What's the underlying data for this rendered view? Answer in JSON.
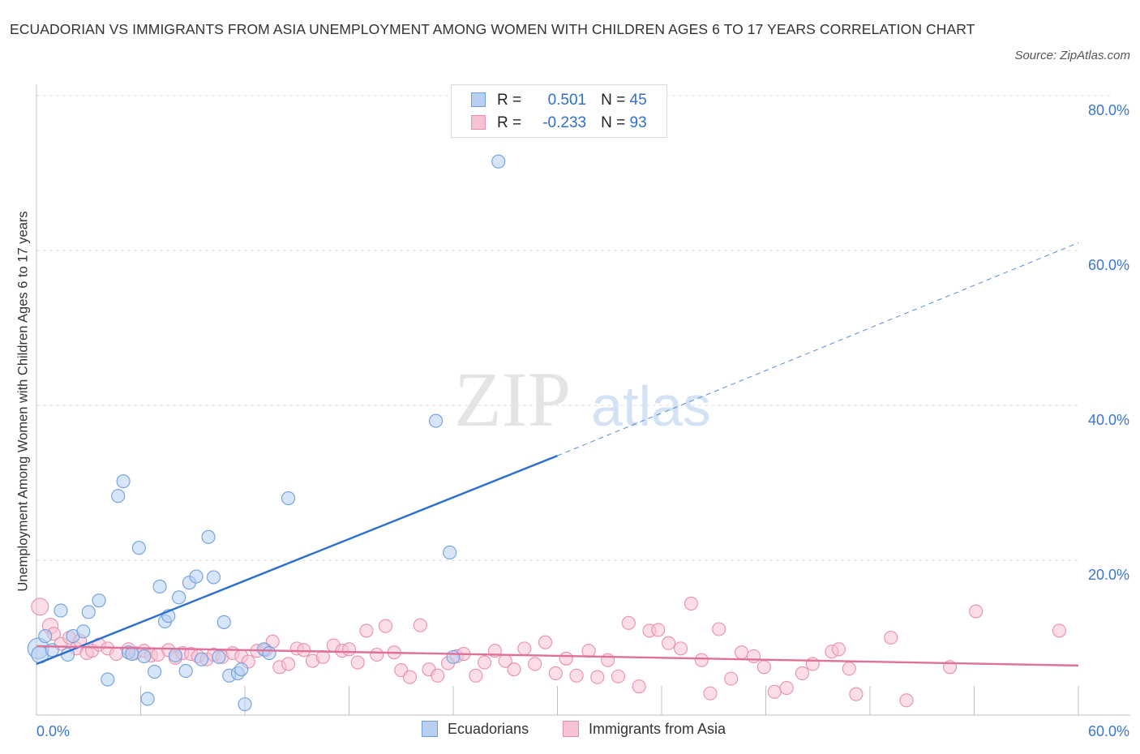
{
  "title": "ECUADORIAN VS IMMIGRANTS FROM ASIA UNEMPLOYMENT AMONG WOMEN WITH CHILDREN AGES 6 TO 17 YEARS CORRELATION CHART",
  "source": "Source: ZipAtlas.com",
  "watermark": {
    "zip": "ZIP",
    "atlas": "atlas"
  },
  "legend": {
    "r_label": "R =",
    "n_label": "N =",
    "series": [
      {
        "name": "Ecuadorians",
        "r": "0.501",
        "n": "45"
      },
      {
        "name": "Immigrants from Asia",
        "r": "-0.233",
        "n": "93"
      }
    ]
  },
  "colors": {
    "blue_fill": "#b7d0f2",
    "blue_stroke": "#6f9fdc",
    "blue_line": "#2a6fcf",
    "pink_fill": "#f7c3d3",
    "pink_stroke": "#e98fae",
    "pink_line": "#e0709a",
    "axis_text": "#3b76d0"
  },
  "chart_data": {
    "type": "scatter",
    "title": "ECUADORIAN VS IMMIGRANTS FROM ASIA UNEMPLOYMENT AMONG WOMEN WITH CHILDREN AGES 6 TO 17 YEARS CORRELATION CHART",
    "xlabel": "",
    "ylabel": "Unemployment Among Women with Children Ages 6 to 17 years",
    "xlim": [
      0,
      60
    ],
    "ylim": [
      0,
      80
    ],
    "x_tick_labels": [
      "0.0%",
      "60.0%"
    ],
    "y_ticks": [
      {
        "value": 20,
        "label": "20.0%"
      },
      {
        "value": 40,
        "label": "40.0%"
      },
      {
        "value": 60,
        "label": "60.0%"
      },
      {
        "value": 80,
        "label": "80.0%"
      }
    ],
    "grid": true,
    "legend_position": "top-center",
    "series": [
      {
        "name": "Ecuadorians",
        "color": "#6f9fdc",
        "trend": {
          "x0": 0,
          "y0": 6.6,
          "x1": 30,
          "y1": 33.5,
          "dashed_to_x": 60,
          "dashed_to_y": 61
        },
        "points": [
          [
            0.1,
            8.6,
            1.6
          ],
          [
            0.2,
            7.8,
            1.3
          ],
          [
            0.5,
            10.2,
            1
          ],
          [
            0.9,
            8.4,
            1
          ],
          [
            1.4,
            13.5,
            1
          ],
          [
            1.8,
            7.8,
            1
          ],
          [
            2.1,
            10.2,
            1
          ],
          [
            2.7,
            10.8,
            1
          ],
          [
            3.0,
            13.3,
            1
          ],
          [
            3.6,
            14.8,
            1
          ],
          [
            4.1,
            4.6,
            1
          ],
          [
            4.7,
            28.3,
            1
          ],
          [
            5.0,
            30.2,
            1
          ],
          [
            5.3,
            8.1,
            1
          ],
          [
            5.5,
            7.9,
            1
          ],
          [
            5.9,
            21.6,
            1
          ],
          [
            6.2,
            7.6,
            1
          ],
          [
            6.4,
            2.1,
            1
          ],
          [
            6.8,
            5.6,
            1
          ],
          [
            7.1,
            16.6,
            1
          ],
          [
            7.4,
            12.1,
            1
          ],
          [
            7.6,
            12.8,
            1
          ],
          [
            8.0,
            7.7,
            1
          ],
          [
            8.2,
            15.2,
            1
          ],
          [
            8.6,
            5.7,
            1
          ],
          [
            8.8,
            17.1,
            1
          ],
          [
            9.2,
            17.9,
            1
          ],
          [
            9.5,
            7.2,
            1
          ],
          [
            9.9,
            23.0,
            1
          ],
          [
            10.2,
            17.8,
            1
          ],
          [
            10.5,
            7.5,
            1
          ],
          [
            10.8,
            12.0,
            1
          ],
          [
            11.1,
            5.1,
            1
          ],
          [
            11.6,
            5.4,
            1
          ],
          [
            11.8,
            5.9,
            1
          ],
          [
            12.0,
            1.4,
            1
          ],
          [
            13.1,
            8.5,
            1
          ],
          [
            13.4,
            8.0,
            1
          ],
          [
            14.5,
            28.0,
            1
          ],
          [
            23.0,
            38.0,
            1
          ],
          [
            23.8,
            21.0,
            1
          ],
          [
            24.0,
            7.5,
            1
          ],
          [
            26.6,
            71.5,
            1
          ]
        ]
      },
      {
        "name": "Immigrants from Asia",
        "color": "#e98fae",
        "trend": {
          "x0": 0,
          "y0": 8.9,
          "x1": 60,
          "y1": 6.4
        },
        "points": [
          [
            0.2,
            14.0,
            1.3
          ],
          [
            0.8,
            11.5,
            1.2
          ],
          [
            1.0,
            10.5,
            1
          ],
          [
            1.4,
            9.2,
            1
          ],
          [
            1.9,
            10.0,
            1
          ],
          [
            2.3,
            8.6,
            1
          ],
          [
            2.5,
            9.6,
            1
          ],
          [
            2.9,
            8.0,
            1
          ],
          [
            3.2,
            8.3,
            1
          ],
          [
            3.6,
            9.1,
            1
          ],
          [
            4.1,
            8.6,
            1
          ],
          [
            4.6,
            7.9,
            1
          ],
          [
            5.3,
            8.5,
            1
          ],
          [
            5.7,
            8.0,
            1
          ],
          [
            6.2,
            8.3,
            1
          ],
          [
            6.6,
            7.7,
            1
          ],
          [
            7.0,
            7.8,
            1
          ],
          [
            7.6,
            8.4,
            1
          ],
          [
            8.0,
            7.4,
            1
          ],
          [
            8.4,
            8.0,
            1
          ],
          [
            8.9,
            7.9,
            1
          ],
          [
            9.3,
            7.6,
            1
          ],
          [
            9.8,
            7.2,
            1
          ],
          [
            10.2,
            7.8,
            1
          ],
          [
            10.7,
            7.5,
            1
          ],
          [
            11.3,
            8.0,
            1
          ],
          [
            11.8,
            7.6,
            1
          ],
          [
            12.2,
            6.9,
            1
          ],
          [
            12.7,
            8.3,
            1
          ],
          [
            13.2,
            8.4,
            1
          ],
          [
            13.6,
            9.5,
            1
          ],
          [
            14.0,
            6.2,
            1
          ],
          [
            14.5,
            6.6,
            1
          ],
          [
            15.0,
            8.6,
            1
          ],
          [
            15.4,
            8.4,
            1
          ],
          [
            15.9,
            7.0,
            1
          ],
          [
            16.5,
            7.5,
            1
          ],
          [
            17.1,
            9.0,
            1
          ],
          [
            17.6,
            8.3,
            1
          ],
          [
            18.0,
            8.5,
            1
          ],
          [
            18.5,
            6.8,
            1
          ],
          [
            19.0,
            10.9,
            1
          ],
          [
            19.6,
            7.8,
            1
          ],
          [
            20.1,
            11.5,
            1
          ],
          [
            20.6,
            8.1,
            1
          ],
          [
            21.0,
            5.8,
            1
          ],
          [
            21.5,
            4.9,
            1
          ],
          [
            22.1,
            11.6,
            1
          ],
          [
            22.6,
            5.9,
            1
          ],
          [
            23.1,
            5.1,
            1
          ],
          [
            23.7,
            6.7,
            1
          ],
          [
            24.2,
            7.6,
            1
          ],
          [
            24.6,
            7.9,
            1
          ],
          [
            25.3,
            5.1,
            1
          ],
          [
            25.8,
            6.8,
            1
          ],
          [
            26.4,
            8.3,
            1
          ],
          [
            27.0,
            7.0,
            1
          ],
          [
            27.5,
            5.9,
            1
          ],
          [
            28.1,
            8.6,
            1
          ],
          [
            28.7,
            6.6,
            1
          ],
          [
            29.3,
            9.4,
            1
          ],
          [
            29.9,
            5.4,
            1
          ],
          [
            30.5,
            7.3,
            1
          ],
          [
            31.1,
            5.1,
            1
          ],
          [
            31.8,
            8.3,
            1
          ],
          [
            32.3,
            4.9,
            1
          ],
          [
            32.9,
            7.1,
            1
          ],
          [
            33.5,
            5.0,
            1
          ],
          [
            34.1,
            11.9,
            1
          ],
          [
            34.7,
            3.7,
            1
          ],
          [
            35.3,
            10.9,
            1
          ],
          [
            35.8,
            11.0,
            1
          ],
          [
            36.4,
            9.3,
            1
          ],
          [
            37.1,
            8.6,
            1
          ],
          [
            37.7,
            14.4,
            1
          ],
          [
            38.3,
            7.1,
            1
          ],
          [
            38.8,
            2.8,
            1
          ],
          [
            39.3,
            11.1,
            1
          ],
          [
            40.0,
            4.7,
            1
          ],
          [
            40.6,
            8.1,
            1
          ],
          [
            41.3,
            7.6,
            1
          ],
          [
            41.9,
            6.2,
            1
          ],
          [
            42.5,
            3.0,
            1
          ],
          [
            43.2,
            3.5,
            1
          ],
          [
            44.1,
            5.4,
            1
          ],
          [
            44.7,
            6.6,
            1
          ],
          [
            45.8,
            8.2,
            1
          ],
          [
            46.2,
            8.5,
            1
          ],
          [
            46.8,
            6.0,
            1
          ],
          [
            47.2,
            2.7,
            1
          ],
          [
            49.2,
            10.0,
            1
          ],
          [
            50.1,
            1.9,
            1
          ],
          [
            52.6,
            6.2,
            1
          ],
          [
            54.1,
            13.4,
            1
          ],
          [
            58.9,
            10.9,
            1
          ]
        ]
      }
    ]
  },
  "axes": {
    "x_left_label": "0.0%",
    "x_right_label": "60.0%",
    "y_labels": [
      "20.0%",
      "40.0%",
      "60.0%",
      "80.0%"
    ]
  }
}
